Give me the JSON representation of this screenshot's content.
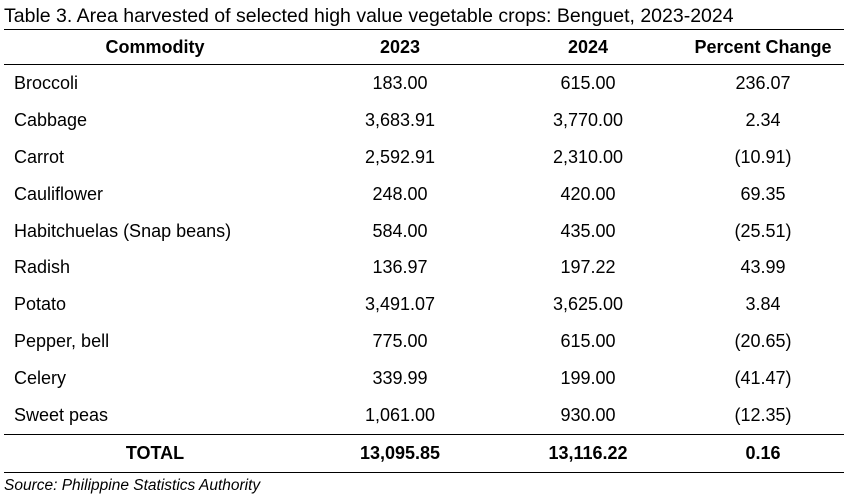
{
  "title": "Table 3. Area harvested of selected high value vegetable crops: Benguet, 2023-2024",
  "columns": [
    "Commodity",
    "2023",
    "2024",
    "Percent Change"
  ],
  "rows": [
    [
      "Broccoli",
      "183.00",
      "615.00",
      "236.07"
    ],
    [
      "Cabbage",
      "3,683.91",
      "3,770.00",
      "2.34"
    ],
    [
      "Carrot",
      "2,592.91",
      "2,310.00",
      "(10.91)"
    ],
    [
      "Cauliflower",
      "248.00",
      "420.00",
      "69.35"
    ],
    [
      "Habitchuelas (Snap beans)",
      "584.00",
      "435.00",
      "(25.51)"
    ],
    [
      "Radish",
      "136.97",
      "197.22",
      "43.99"
    ],
    [
      "Potato",
      "3,491.07",
      "3,625.00",
      "3.84"
    ],
    [
      "Pepper, bell",
      "775.00",
      "615.00",
      "(20.65)"
    ],
    [
      "Celery",
      "339.99",
      "199.00",
      "(41.47)"
    ],
    [
      "Sweet peas",
      "1,061.00",
      "930.00",
      "(12.35)"
    ]
  ],
  "total": [
    "TOTAL",
    "13,095.85",
    "13,116.22",
    "0.16"
  ],
  "source": "Source: Philippine Statistics Authority"
}
